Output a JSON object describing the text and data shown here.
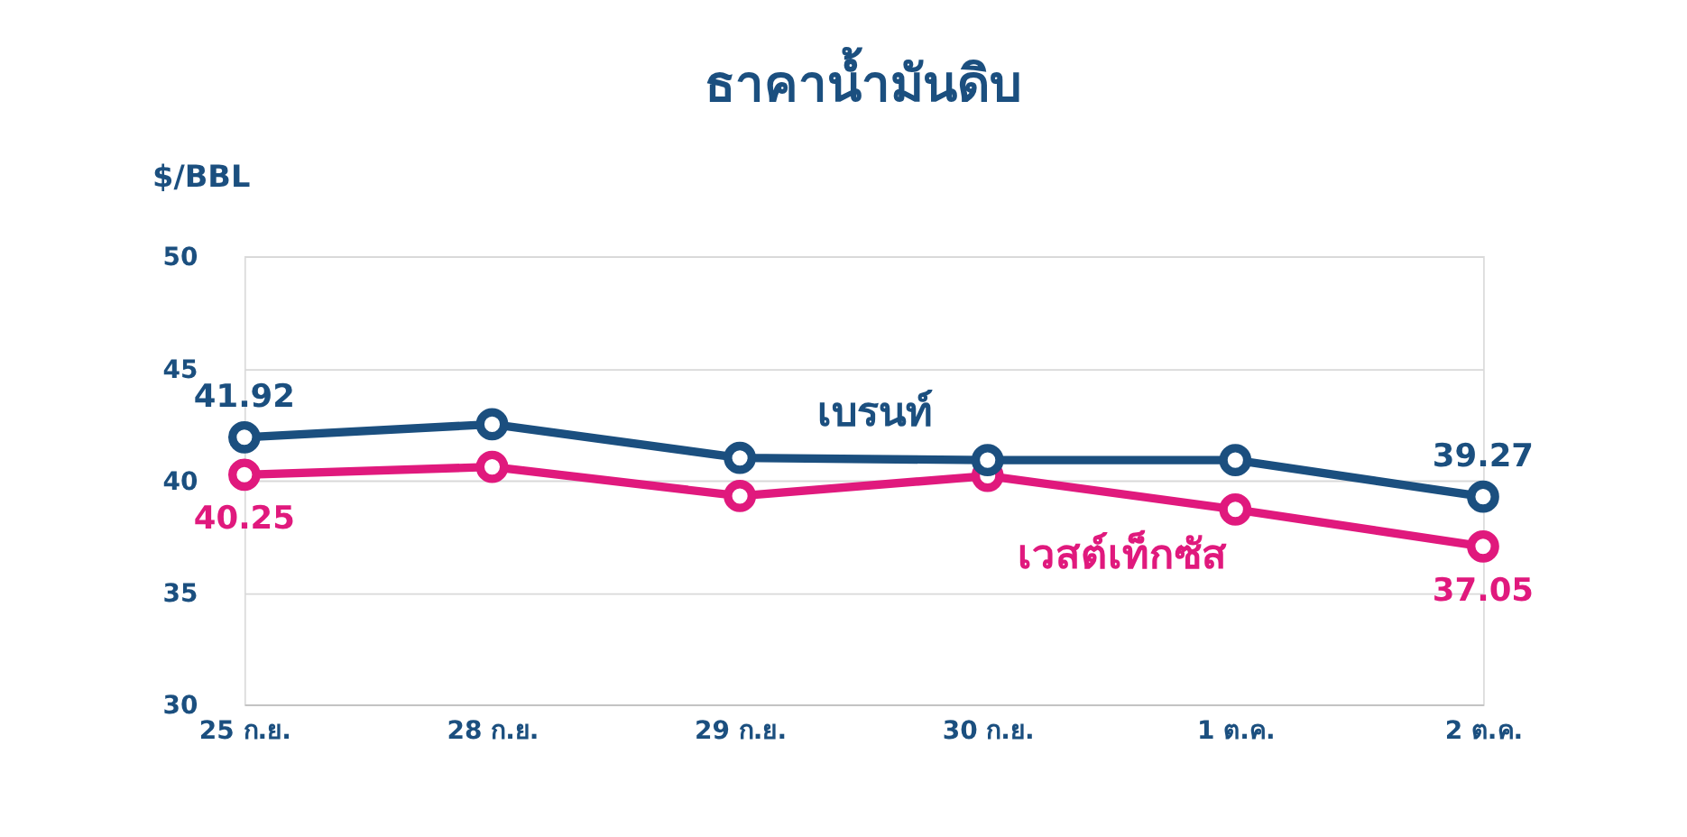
{
  "chart_data": {
    "type": "line",
    "title": "ธาคาน้ำมันดิบ",
    "ylabel": "$/BBL",
    "categories": [
      "25 ก.ย.",
      "28 ก.ย.",
      "29 ก.ย.",
      "30 ก.ย.",
      "1 ต.ค.",
      "2 ต.ค."
    ],
    "series": [
      {
        "name": "เบรนท์",
        "color": "#1b4f7f",
        "values": [
          41.92,
          42.5,
          41.0,
          40.9,
          40.9,
          39.27
        ],
        "value_labels": [
          "41.92",
          null,
          null,
          null,
          null,
          "39.27"
        ]
      },
      {
        "name": "เวสต์เท็กซัส",
        "color": "#e0197d",
        "values": [
          40.25,
          40.6,
          39.3,
          40.2,
          38.7,
          37.05
        ],
        "value_labels": [
          "40.25",
          null,
          null,
          null,
          null,
          "37.05"
        ]
      }
    ],
    "ylim": [
      30,
      50
    ],
    "yticks": [
      30,
      35,
      40,
      45,
      50
    ],
    "grid": "y",
    "marker": "circle",
    "line_style": "solid"
  }
}
